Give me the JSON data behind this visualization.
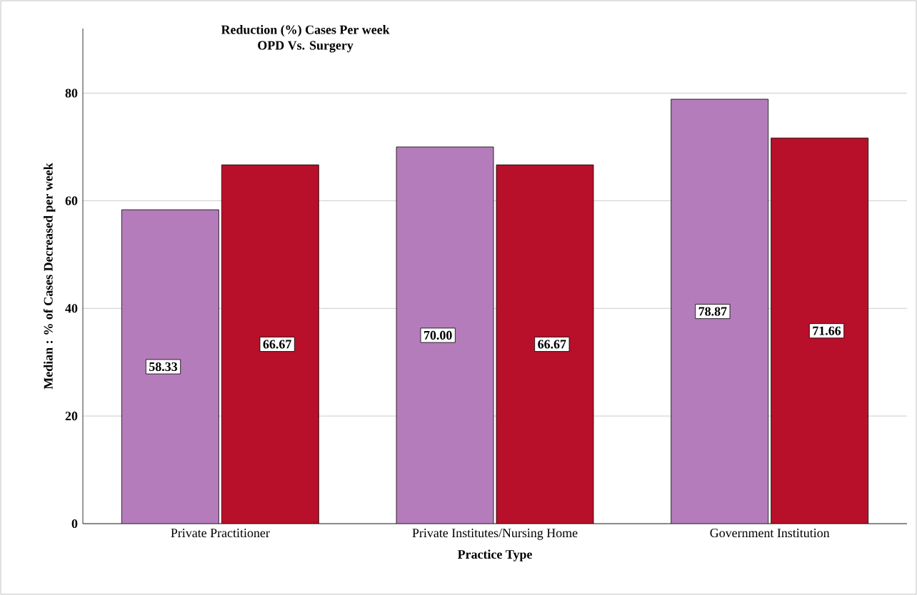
{
  "chart_data": {
    "type": "bar",
    "title": "Reduction (%) Cases Per week",
    "subtitle": "OPD Vs. Surgery",
    "xlabel": "Practice Type",
    "ylabel": "Median : % of Cases Decreased per week",
    "categories": [
      "Private Practitioner",
      "Private Institutes/Nursing Home",
      "Government Institution"
    ],
    "series": [
      {
        "color": "#b57cbb",
        "values": [
          58.33,
          70.0,
          78.87
        ],
        "value_labels": [
          "58.33",
          "70.00",
          "78.87"
        ]
      },
      {
        "color": "#b8102a",
        "values": [
          66.67,
          66.67,
          71.66
        ],
        "value_labels": [
          "66.67",
          "66.67",
          "71.66"
        ]
      }
    ],
    "ylim": [
      0,
      92
    ],
    "yticks": [
      0,
      20,
      40,
      60,
      80
    ],
    "grid": "y"
  }
}
